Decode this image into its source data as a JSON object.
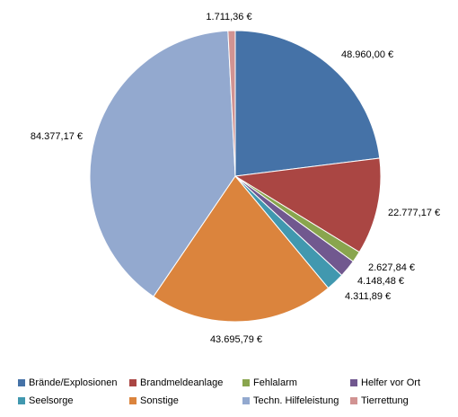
{
  "chart_data": {
    "type": "pie",
    "categories": [
      "Brände/Explosionen",
      "Brandmeldeanlage",
      "Fehlalarm",
      "Helfer vor Ort",
      "Seelsorge",
      "Sonstige",
      "Techn. Hilfeleistung",
      "Tierrettung"
    ],
    "values": [
      48960.0,
      22777.17,
      2627.84,
      4148.48,
      4311.89,
      43695.79,
      84377.17,
      1711.36
    ],
    "value_labels": [
      "48.960,00 €",
      "22.777,17 €",
      "2.627,84 €",
      "4.148,48 €",
      "4.311,89 €",
      "43.695,79 €",
      "84.377,17 €",
      "1.711,36 €"
    ],
    "colors": [
      "#4572A7",
      "#AA4643",
      "#89A54E",
      "#71588F",
      "#4198AF",
      "#DB843D",
      "#93A9CF",
      "#D19392"
    ],
    "legend_position": "bottom"
  }
}
